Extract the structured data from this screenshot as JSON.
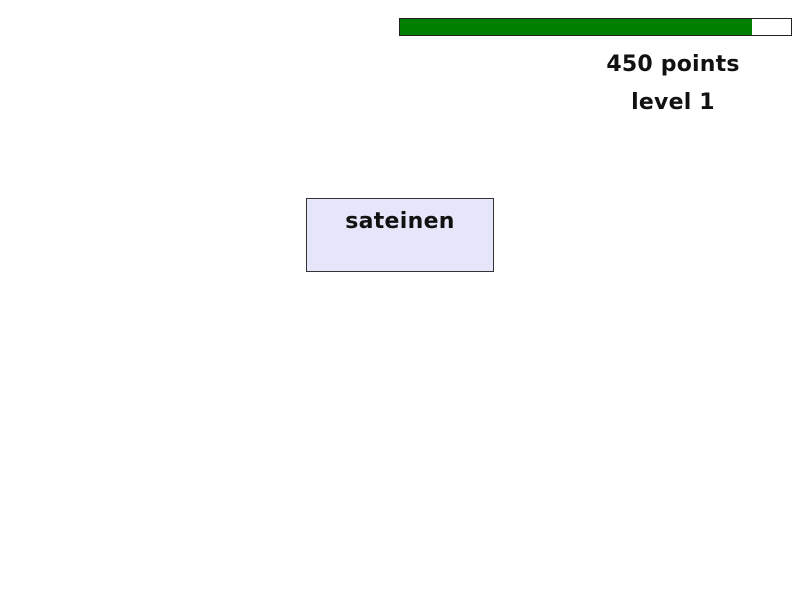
{
  "hud": {
    "progress": 0.9,
    "progress_color": "#008000",
    "score_label": "450 points",
    "level_label": "level 1"
  },
  "word_card": {
    "word": "sateinen",
    "background_color": "#e6e6fa"
  }
}
